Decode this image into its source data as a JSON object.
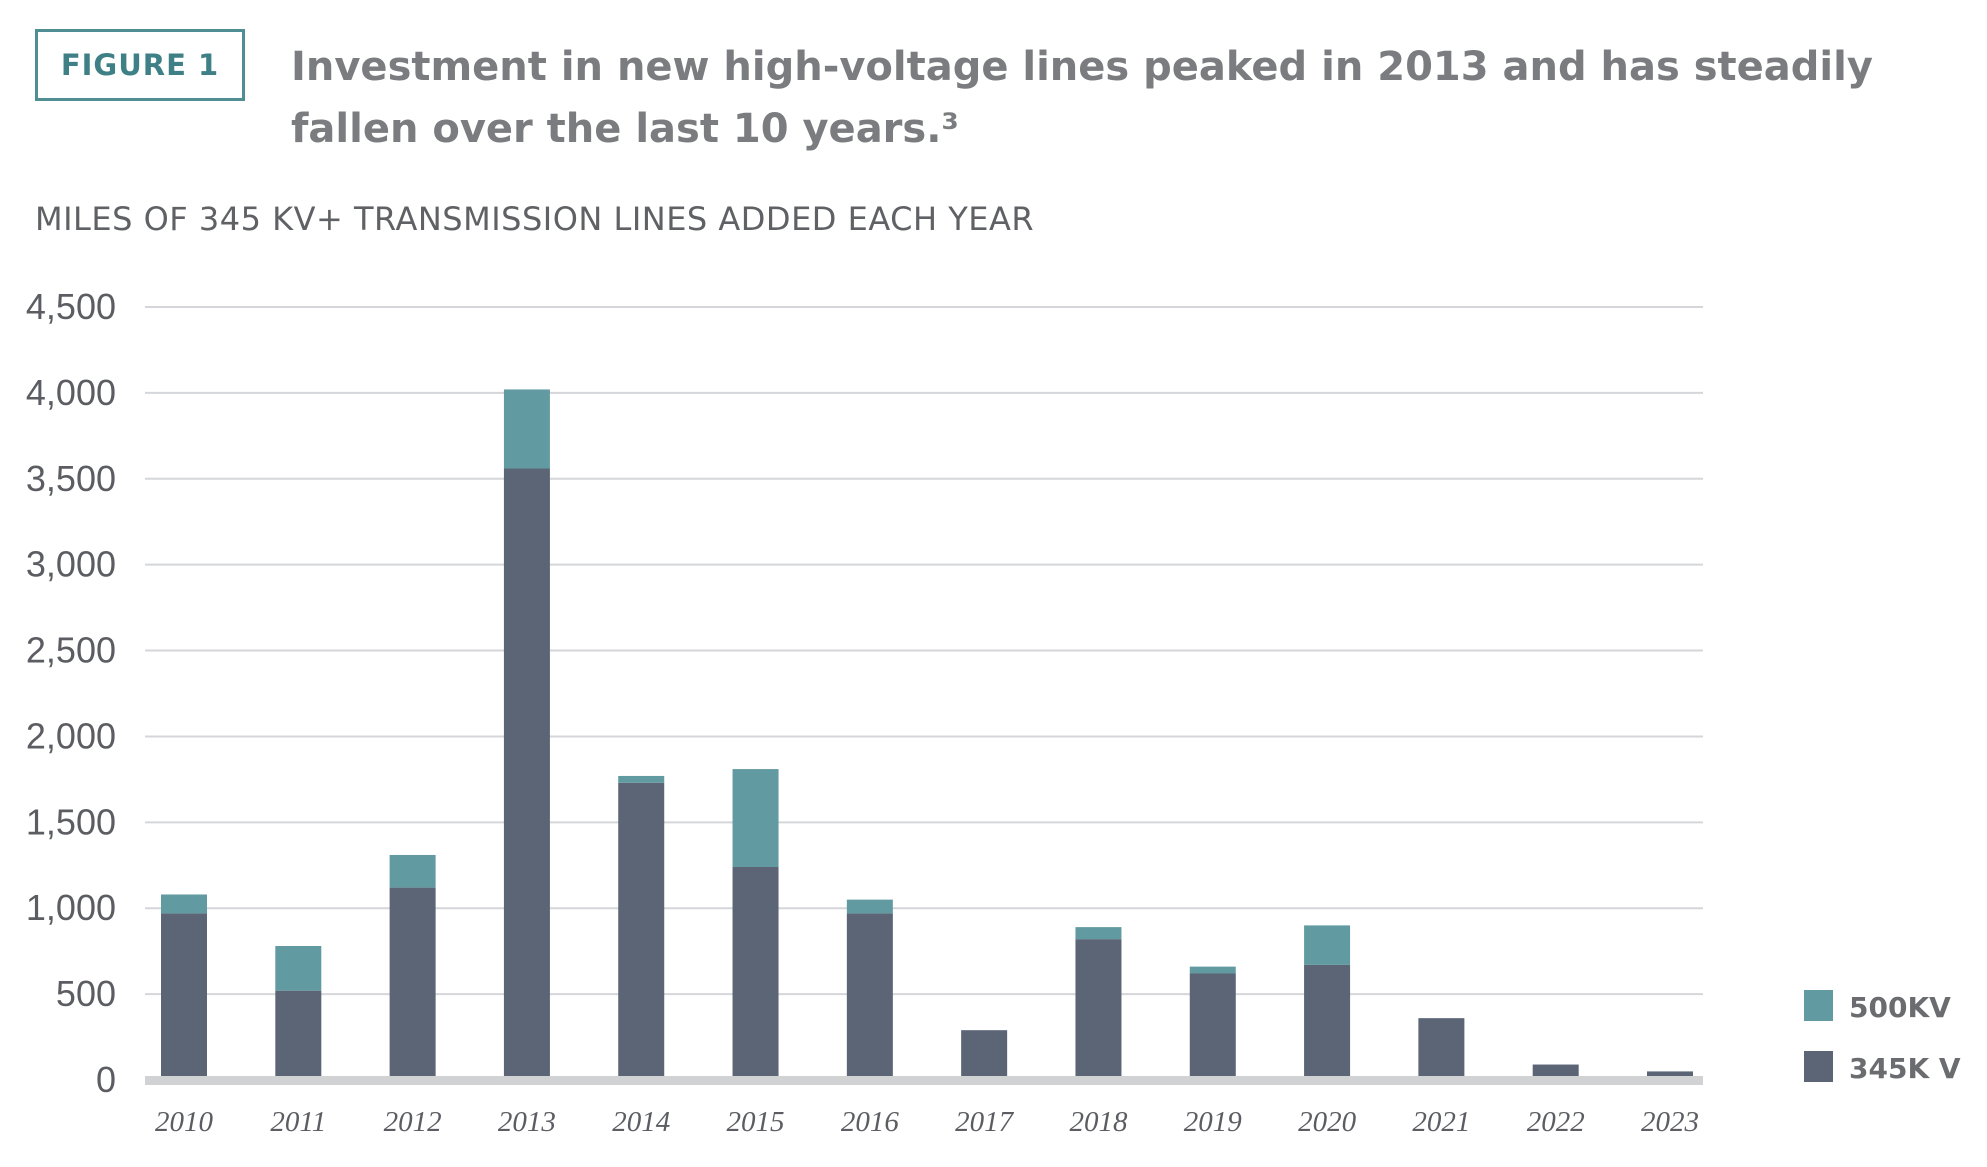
{
  "header": {
    "figure_label": "FIGURE 1",
    "headline": "Investment in new high-voltage lines peaked in 2013 and has steadily fallen over the last 10 years.³"
  },
  "chart_data": {
    "type": "bar",
    "stacked": true,
    "title": "Investment in new high-voltage lines peaked in 2013 and has steadily fallen over the last 10 years.³",
    "subtitle": "MILES OF 345 KV+ TRANSMISSION LINES ADDED EACH YEAR",
    "xlabel": "",
    "ylabel": "",
    "categories": [
      "2010",
      "2011",
      "2012",
      "2013",
      "2014",
      "2015",
      "2016",
      "2017",
      "2018",
      "2019",
      "2020",
      "2021",
      "2022",
      "2023"
    ],
    "series": [
      {
        "name": "345K V",
        "color": "#5b6576",
        "values": [
          970,
          520,
          1120,
          3560,
          1730,
          1240,
          970,
          290,
          820,
          620,
          670,
          360,
          90,
          50
        ]
      },
      {
        "name": "500KV",
        "color": "#629aa1",
        "values": [
          110,
          260,
          190,
          460,
          40,
          570,
          80,
          0,
          70,
          40,
          230,
          0,
          0,
          0
        ]
      }
    ],
    "ylim": [
      0,
      4500
    ],
    "yticks": [
      0,
      500,
      1000,
      1500,
      2000,
      2500,
      3000,
      3500,
      4000,
      4500
    ],
    "ytick_labels": [
      "0",
      "500",
      "1,000",
      "1,500",
      "2,000",
      "2,500",
      "3,000",
      "3,500",
      "4,000",
      "4,500"
    ],
    "grid": true,
    "legend": {
      "placement": "bottom-right",
      "entries": [
        "500KV",
        "345K V"
      ]
    },
    "colors": {
      "grid": "#d4d6d9",
      "baseline": "#d0d2d4"
    }
  }
}
